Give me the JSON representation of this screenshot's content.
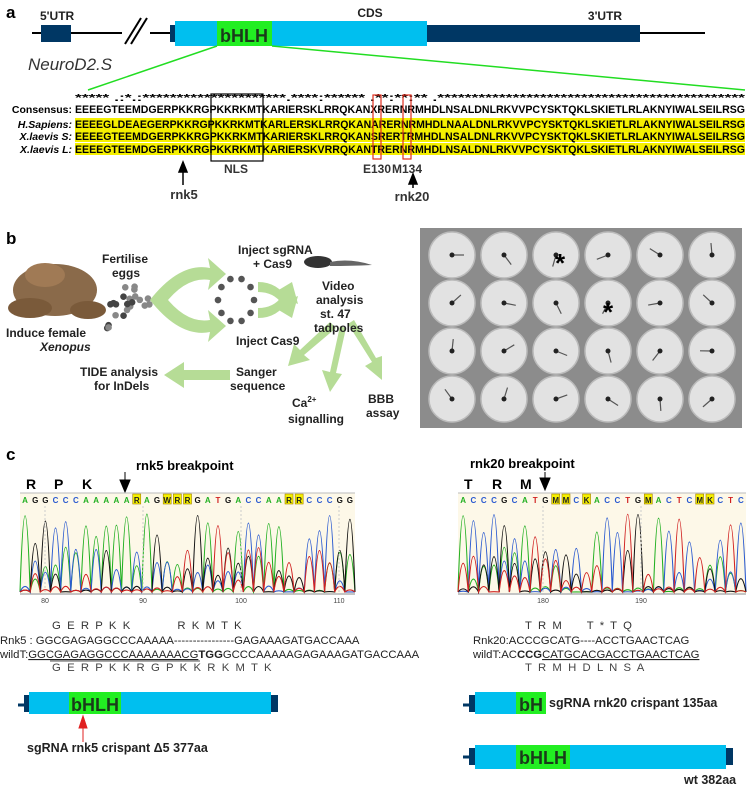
{
  "panel_a": {
    "label": "a",
    "utr5": "5'UTR",
    "cds": "CDS",
    "utr3": "3'UTR",
    "gene": "NeuroD2.S",
    "domain": "bHLH",
    "conservation": "***** .:*.:*********************.****:****** .**:**:** .*********************************************",
    "rows": [
      {
        "name": "Consensus:",
        "seq": "EEEEGTEEMDGERPKKRGPKKRKMTKARIERSKLRRQKANXRERNRMHDLNSALDNLRKVVPCYSKTQKLSKIETLRLAKNYIWALSEILRSG"
      },
      {
        "name": "H.Sapiens:",
        "seq": "EEEEGLDEAEGERPKKRGPKKRKMTKARLERSKLRRQKANARERNRMHDLNAALDNLRKVVPCYSKTQKLSKIETLRLAKNYIWALSEILRSG"
      },
      {
        "name": "X.laevis S:",
        "seq": "EEEEGTEEMDGERPKKRGPKKRKMTKARIERSKLRRQKANSRERTRMHDLNSALDNLRKVVPCYSKTQKLSKIETLRLAKNYIWALSEILRSG"
      },
      {
        "name": "X.laevis L:",
        "seq": "EEEEGTEEMDGERPKKRGPKKRKMTKARIERSKVRRQKANTRERNRMHDLNSALDNLRKVVPCYSKTQKLSKIETLRLAKNYIWALSEILRSG"
      }
    ],
    "nls": "NLS",
    "e130": "E130",
    "m134": "M134",
    "rnk5": "rnk5",
    "rnk20": "rnk20"
  },
  "panel_b": {
    "label": "b",
    "induce": "Induce female",
    "xenopus": "Xenopus",
    "fertilise": "Fertilise",
    "eggs": "eggs",
    "inject_sg1": "Inject sgRNA",
    "inject_sg2": "+ Cas9",
    "inject_cas9": "Inject Cas9",
    "video1": "Video",
    "video2": "analysis",
    "video3": "st. 47",
    "video4": "tadpoles",
    "sanger1": "Sanger",
    "sanger2": "sequence",
    "tide1": "TIDE analysis",
    "tide2": "for InDels",
    "ca1": "Ca",
    "ca_sup": "2+",
    "ca2": "signalling",
    "bbb1": "BBB",
    "bbb2": "assay",
    "asterisk": "*"
  },
  "panel_c": {
    "label": "c",
    "left": {
      "title": "rnk5 breakpoint",
      "aa_top": [
        "R",
        "P",
        "K"
      ],
      "bases": "AGGCCCAAAAARAGWRRGATGACCAARRCCCGG",
      "ticks": [
        "80",
        "90",
        "100",
        "110"
      ],
      "aa1": "G  E  R  P  K  K               R  K  M  T  K",
      "mut": "Rnk5 : GGCGAGAGGCCCAAAAA----------------GAGAAAGATGACCAAA",
      "wt_label": "wildT:",
      "wt_a": "GGCGAGAGGCCCAAAAAAACG",
      "wt_b": "TGG",
      "wt_c": "GCCCAAAAAGAGAAAGATGACCAAA",
      "aa2": "G  E  R  P  K  K  R  G  P  K  K  R  K  M  T  K",
      "protein": "bHLH",
      "caption": "sgRNA rnk5 crispant  Δ5 377aa"
    },
    "right": {
      "title": "rnk20 breakpoint",
      "aa_top": [
        "T",
        "R",
        "M"
      ],
      "bases": "ACCCGCATGMMCKACCTGMACTCMKCTC",
      "ticks": [
        "180",
        "190"
      ],
      "aa1": "T  R  M        T  *  T  Q",
      "mut": "Rnk20:ACCCGCATG----ACCTGAACTCAG",
      "wt_label": "wildT:AC",
      "wt_b": "CCG",
      "wt_c": "CATGCACGACCTGAACTCAG",
      "aa2": "T  R  M  H  D  L  N  S  A",
      "protein_short": "bH",
      "caption_short": "sgRNA rnk20 crispant 135aa",
      "protein": "bHLH",
      "caption": "wt 382aa"
    }
  },
  "colors": {
    "cyan": "#00bfef",
    "navy": "#003764",
    "green": "#22ee22",
    "yellow": "#f5f000",
    "arrow": "#b6dc96",
    "red": "#e03020",
    "orange": "#c0632a"
  }
}
